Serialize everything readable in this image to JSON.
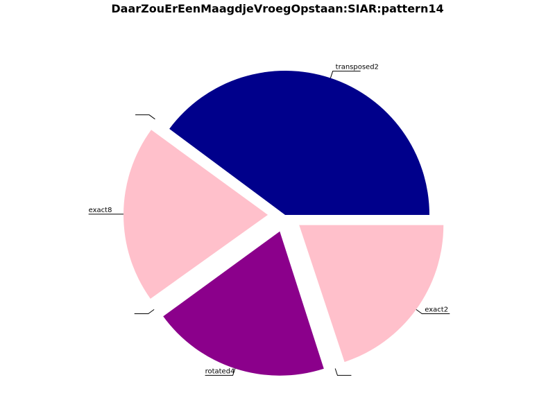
{
  "chart_data": {
    "type": "pie",
    "title": "DaarZouErEenMaagdjeVroegOpstaan:SIAR:pattern14",
    "slices": [
      {
        "label": "transposed2",
        "value": 40,
        "color": "#00008b",
        "explode": 0
      },
      {
        "label": "",
        "value": 0.15,
        "color": "#ffffff",
        "explode": 0.12
      },
      {
        "label": "exact8",
        "value": 20,
        "color": "#ffc0cb",
        "explode": 0.12
      },
      {
        "label": "",
        "value": 0.15,
        "color": "#ffffff",
        "explode": 0.12
      },
      {
        "label": "rotated4",
        "value": 20,
        "color": "#8b008b",
        "explode": 0.12
      },
      {
        "label": "",
        "value": 0.15,
        "color": "#ffffff",
        "explode": 0.12
      },
      {
        "label": "exact2",
        "value": 20,
        "color": "#ffc0cb",
        "explode": 0.12
      }
    ],
    "start_angle_deg": 0,
    "direction": "counterclockwise",
    "legend": "none"
  }
}
